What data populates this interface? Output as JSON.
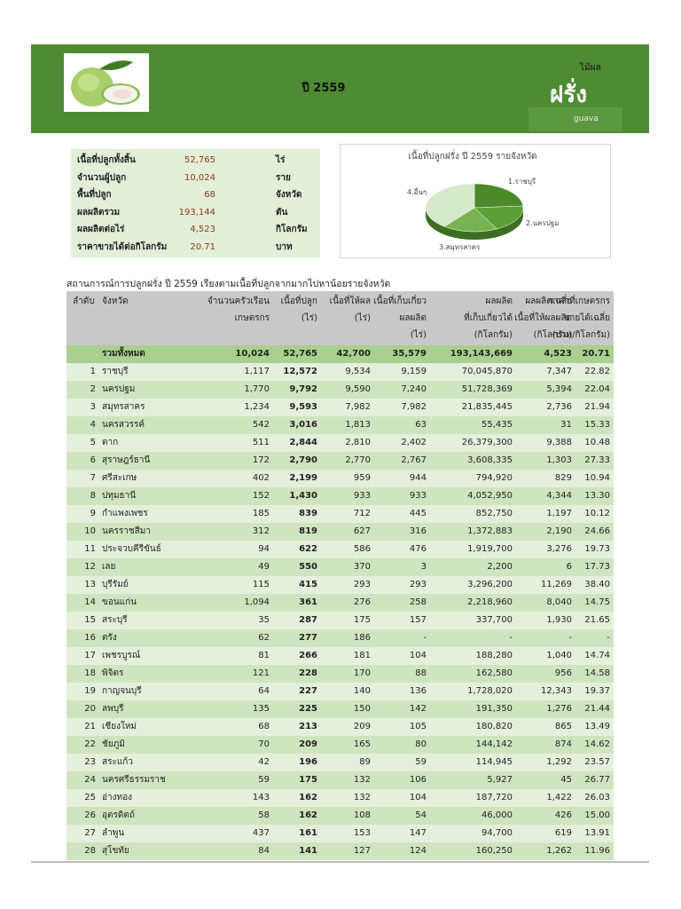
{
  "header": {
    "year_title": "ปี 2559",
    "category": "ไม้ผล",
    "name_th": "ฝรั่ง",
    "name_en": "guava"
  },
  "summary": {
    "rows": [
      {
        "label": "เนื้อที่ปลูกทั้งสิ้น",
        "value": "52,765",
        "unit": "ไร่"
      },
      {
        "label": "จำนวนผู้ปลูก",
        "value": "10,024",
        "unit": "ราย"
      },
      {
        "label": "พื้นที่ปลูก",
        "value": "68",
        "unit": "จังหวัด"
      },
      {
        "label": "ผลผลิตรวม",
        "value": "193,144",
        "unit": "ตัน"
      },
      {
        "label": "ผลผลิตต่อไร่",
        "value": "4,523",
        "unit": "กิโลกรัม"
      },
      {
        "label": "ราคาขายได้ต่อกิโลกรัม",
        "value": "20.71",
        "unit": "บาท"
      }
    ]
  },
  "chart_data": {
    "type": "pie",
    "title": "เนื้อที่ปลูกฝรั่ง ปี 2559 รายจังหวัด",
    "categories": [
      "1.ราชบุรี",
      "2.นครปฐม",
      "3.สมุทรสาคร",
      "4.อื่นๆ"
    ],
    "values": [
      12572,
      9792,
      9593,
      20808
    ],
    "colors": [
      "#4a8a2a",
      "#5c9e38",
      "#78b253",
      "#d6e9c9"
    ]
  },
  "table": {
    "title": "สถานการณ์การปลูกฝรั่ง ปี 2559 เรียงตามเนื้อที่ปลูกจากมากไปหาน้อยรายจังหวัด",
    "headers": [
      [
        "ลำดับ"
      ],
      [
        "จังหวัด"
      ],
      [
        "จำนวนครัวเรือน",
        "เกษตรกร"
      ],
      [
        "เนื้อที่ปลูก",
        "(ไร่)"
      ],
      [
        "เนื้อที่ให้ผล",
        "(ไร่)"
      ],
      [
        "เนื้อที่เก็บเกี่ยว",
        "ผลผลิต",
        "(ไร่)"
      ],
      [
        "ผลผลิต",
        "ที่เก็บเกี่ยวได้",
        "(กิโลกรัม)"
      ],
      [
        "ผลผลิตเฉลี่ย",
        "เนื้อที่ให้ผลผลิต",
        "(กิโลกรัม)"
      ],
      [
        "ราคาที่เกษตรกร",
        "ขายได้เฉลี่ย",
        "(บาท/กิโลกรัม)"
      ]
    ],
    "total": {
      "label": "รวมทั้งหมด",
      "values": [
        "10,024",
        "52,765",
        "42,700",
        "35,579",
        "193,143,669",
        "4,523",
        "20.71"
      ]
    },
    "rows": [
      [
        "1",
        "ราชบุรี",
        "1,117",
        "12,572",
        "9,534",
        "9,159",
        "70,045,870",
        "7,347",
        "22.82"
      ],
      [
        "2",
        "นครปฐม",
        "1,770",
        "9,792",
        "9,590",
        "7,240",
        "51,728,369",
        "5,394",
        "22.04"
      ],
      [
        "3",
        "สมุทรสาคร",
        "1,234",
        "9,593",
        "7,982",
        "7,982",
        "21,835,445",
        "2,736",
        "21.94"
      ],
      [
        "4",
        "นครสวรรค์",
        "542",
        "3,016",
        "1,813",
        "63",
        "55,435",
        "31",
        "15.33"
      ],
      [
        "5",
        "ตาก",
        "511",
        "2,844",
        "2,810",
        "2,402",
        "26,379,300",
        "9,388",
        "10.48"
      ],
      [
        "6",
        "สุราษฎร์ธานี",
        "172",
        "2,790",
        "2,770",
        "2,767",
        "3,608,335",
        "1,303",
        "27.33"
      ],
      [
        "7",
        "ศรีสะเกษ",
        "402",
        "2,199",
        "959",
        "944",
        "794,920",
        "829",
        "10.94"
      ],
      [
        "8",
        "ปทุมธานี",
        "152",
        "1,430",
        "933",
        "933",
        "4,052,950",
        "4,344",
        "13.30"
      ],
      [
        "9",
        "กำแพงเพชร",
        "185",
        "839",
        "712",
        "445",
        "852,750",
        "1,197",
        "10.12"
      ],
      [
        "10",
        "นครราชสีมา",
        "312",
        "819",
        "627",
        "316",
        "1,372,883",
        "2,190",
        "24.66"
      ],
      [
        "11",
        "ประจวบคีรีขันธ์",
        "94",
        "622",
        "586",
        "476",
        "1,919,700",
        "3,276",
        "19.73"
      ],
      [
        "12",
        "เลย",
        "49",
        "550",
        "370",
        "3",
        "2,200",
        "6",
        "17.73"
      ],
      [
        "13",
        "บุรีรัมย์",
        "115",
        "415",
        "293",
        "293",
        "3,296,200",
        "11,269",
        "38.40"
      ],
      [
        "14",
        "ขอนแก่น",
        "1,094",
        "361",
        "276",
        "258",
        "2,218,960",
        "8,040",
        "14.75"
      ],
      [
        "15",
        "สระบุรี",
        "35",
        "287",
        "175",
        "157",
        "337,700",
        "1,930",
        "21.65"
      ],
      [
        "16",
        "ตรัง",
        "62",
        "277",
        "186",
        "-",
        "-",
        "-",
        "-"
      ],
      [
        "17",
        "เพชรบูรณ์",
        "81",
        "266",
        "181",
        "104",
        "188,280",
        "1,040",
        "14.74"
      ],
      [
        "18",
        "พิจิตร",
        "121",
        "228",
        "170",
        "88",
        "162,580",
        "956",
        "14.58"
      ],
      [
        "19",
        "กาญจนบุรี",
        "64",
        "227",
        "140",
        "136",
        "1,728,020",
        "12,343",
        "19.37"
      ],
      [
        "20",
        "ลพบุรี",
        "135",
        "225",
        "150",
        "142",
        "191,350",
        "1,276",
        "21.44"
      ],
      [
        "21",
        "เชียงใหม่",
        "68",
        "213",
        "209",
        "105",
        "180,820",
        "865",
        "13.49"
      ],
      [
        "22",
        "ชัยภูมิ",
        "70",
        "209",
        "165",
        "80",
        "144,142",
        "874",
        "14.62"
      ],
      [
        "23",
        "สระแก้ว",
        "42",
        "196",
        "89",
        "59",
        "114,945",
        "1,292",
        "23.57"
      ],
      [
        "24",
        "นครศรีธรรมราช",
        "59",
        "175",
        "132",
        "106",
        "5,927",
        "45",
        "26.77"
      ],
      [
        "25",
        "อ่างทอง",
        "143",
        "162",
        "132",
        "104",
        "187,720",
        "1,422",
        "26.03"
      ],
      [
        "26",
        "อุตรดิตถ์",
        "58",
        "162",
        "108",
        "54",
        "46,000",
        "426",
        "15.00"
      ],
      [
        "27",
        "ลำพูน",
        "437",
        "161",
        "153",
        "147",
        "94,700",
        "619",
        "13.91"
      ],
      [
        "28",
        "สุโขทัย",
        "84",
        "141",
        "127",
        "124",
        "160,250",
        "1,262",
        "11.96"
      ]
    ]
  }
}
